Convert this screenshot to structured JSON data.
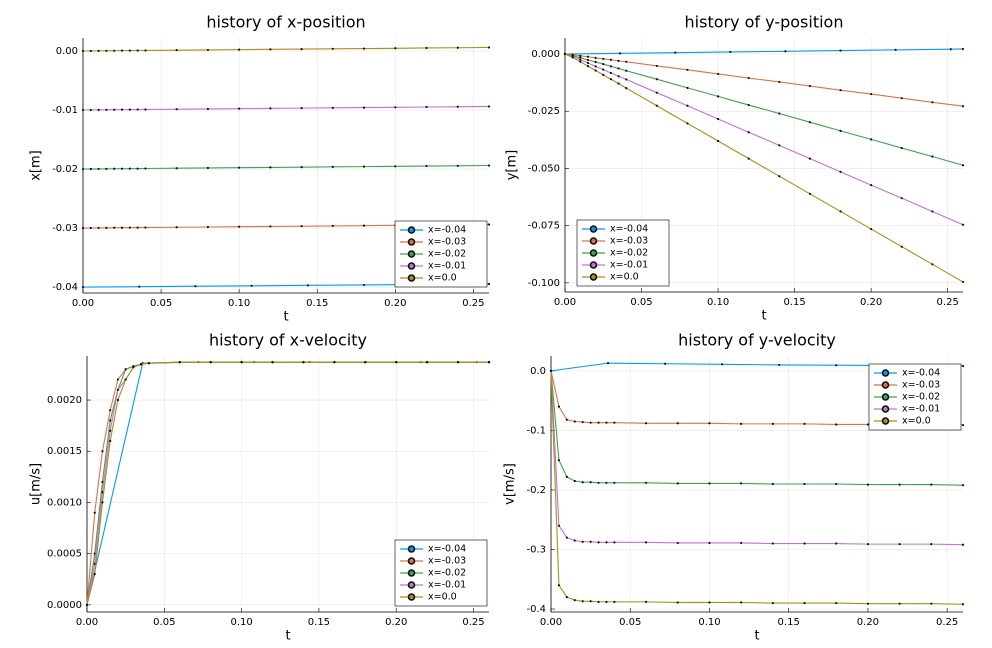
{
  "chart_data": [
    {
      "type": "line",
      "title": "history of x-position",
      "xlabel": "t",
      "ylabel": "x[m]",
      "legend": "lower right",
      "grid": true,
      "xlim": [
        0,
        0.26
      ],
      "xticks": [
        {
          "value": 0,
          "label": "0.00"
        },
        0.05,
        {
          "value": 0.1,
          "label": "0.10"
        },
        0.15,
        {
          "value": 0.2,
          "label": "0.20"
        },
        0.25
      ],
      "ylim": [
        -0.041,
        0.0022
      ],
      "yticks": [
        {
          "value": 0,
          "label": "0.00"
        },
        -0.01,
        -0.02,
        -0.03,
        -0.04
      ],
      "x": [
        0,
        0.005,
        0.01,
        0.015,
        0.02,
        0.025,
        0.03,
        0.035,
        0.04,
        0.06,
        0.08,
        0.1,
        0.12,
        0.14,
        0.16,
        0.18,
        0.2,
        0.22,
        0.24,
        0.26
      ],
      "series": [
        {
          "name": "x=-0.04",
          "color": "#009afa",
          "x": [
            0,
            0.036,
            0.072,
            0.108,
            0.144,
            0.18,
            0.216,
            0.252,
            0.26
          ],
          "values": [
            -0.04,
            -0.03993,
            -0.03985,
            -0.03978,
            -0.0397,
            -0.03963,
            -0.03956,
            -0.03949,
            -0.03948
          ]
        },
        {
          "name": "x=-0.03",
          "color": "#e36f47",
          "values": [
            -0.03,
            -0.02999,
            -0.02998,
            -0.02997,
            -0.02995,
            -0.02994,
            -0.02993,
            -0.02992,
            -0.02991,
            -0.02986,
            -0.02982,
            -0.02977,
            -0.02972,
            -0.02968,
            -0.02963,
            -0.02959,
            -0.02954,
            -0.02949,
            -0.02945,
            -0.0294
          ]
        },
        {
          "name": "x=-0.02",
          "color": "#3ea44e",
          "values": [
            -0.02,
            -0.01999,
            -0.01998,
            -0.01997,
            -0.01995,
            -0.01994,
            -0.01993,
            -0.01992,
            -0.01991,
            -0.01986,
            -0.01982,
            -0.01977,
            -0.01972,
            -0.01968,
            -0.01963,
            -0.01959,
            -0.01954,
            -0.01949,
            -0.01945,
            -0.0194
          ]
        },
        {
          "name": "x=-0.01",
          "color": "#c371d2",
          "values": [
            -0.01,
            -0.00999,
            -0.00998,
            -0.00997,
            -0.00995,
            -0.00994,
            -0.00993,
            -0.00992,
            -0.00991,
            -0.00986,
            -0.00982,
            -0.00977,
            -0.00972,
            -0.00968,
            -0.00963,
            -0.00959,
            -0.00954,
            -0.00949,
            -0.00945,
            -0.0094
          ]
        },
        {
          "name": "x=0.0",
          "color": "#ac8d18",
          "values": [
            0,
            1e-05,
            2e-05,
            3e-05,
            5e-05,
            6e-05,
            7e-05,
            8e-05,
            9e-05,
            0.00014,
            0.00018,
            0.00023,
            0.00028,
            0.00032,
            0.00037,
            0.00041,
            0.00046,
            0.00051,
            0.00055,
            0.0006
          ]
        }
      ]
    },
    {
      "type": "line",
      "title": "history of y-position",
      "xlabel": "t",
      "ylabel": "y[m]",
      "legend": "lower left",
      "grid": true,
      "xlim": [
        0,
        0.26
      ],
      "xticks": [
        {
          "value": 0,
          "label": "0.00"
        },
        0.05,
        {
          "value": 0.1,
          "label": "0.10"
        },
        0.15,
        {
          "value": 0.2,
          "label": "0.20"
        },
        0.25
      ],
      "ylim": [
        -0.104,
        0.007
      ],
      "yticks": [
        {
          "value": 0,
          "label": "0.000"
        },
        -0.025,
        {
          "value": -0.05,
          "label": "-0.050"
        },
        -0.075,
        {
          "value": -0.1,
          "label": "-0.100"
        }
      ],
      "x": [
        0,
        0.005,
        0.01,
        0.015,
        0.02,
        0.025,
        0.03,
        0.035,
        0.04,
        0.06,
        0.08,
        0.1,
        0.12,
        0.14,
        0.16,
        0.18,
        0.2,
        0.22,
        0.24,
        0.26
      ],
      "series": [
        {
          "name": "x=-0.04",
          "color": "#009afa",
          "x": [
            0,
            0.036,
            0.072,
            0.108,
            0.144,
            0.18,
            0.216,
            0.252,
            0.26
          ],
          "values": [
            0,
            0.0003,
            0.0006,
            0.0009,
            0.0012,
            0.0015,
            0.0018,
            0.0021,
            0.0022
          ]
        },
        {
          "name": "x=-0.03",
          "color": "#e36f47",
          "values": [
            0,
            -0.0003,
            -0.0008,
            -0.0012,
            -0.0017,
            -0.0021,
            -0.0025,
            -0.003,
            -0.0034,
            -0.0052,
            -0.0069,
            -0.0087,
            -0.0105,
            -0.0122,
            -0.014,
            -0.0158,
            -0.0175,
            -0.0193,
            -0.0211,
            -0.0228
          ]
        },
        {
          "name": "x=-0.02",
          "color": "#3ea44e",
          "values": [
            0,
            -0.0007,
            -0.0016,
            -0.0026,
            -0.0035,
            -0.0044,
            -0.0054,
            -0.0063,
            -0.0073,
            -0.011,
            -0.0148,
            -0.0185,
            -0.0223,
            -0.026,
            -0.0298,
            -0.0336,
            -0.0373,
            -0.0411,
            -0.0448,
            -0.0486
          ]
        },
        {
          "name": "x=-0.01",
          "color": "#c371d2",
          "values": [
            0,
            -0.0011,
            -0.0025,
            -0.0039,
            -0.0054,
            -0.0068,
            -0.0083,
            -0.0097,
            -0.0111,
            -0.0169,
            -0.0226,
            -0.0284,
            -0.0342,
            -0.0399,
            -0.0457,
            -0.0515,
            -0.0573,
            -0.063,
            -0.0688,
            -0.0746
          ]
        },
        {
          "name": "x=0.0",
          "color": "#ac8d18",
          "values": [
            0,
            -0.0015,
            -0.0034,
            -0.0053,
            -0.0072,
            -0.0091,
            -0.011,
            -0.0129,
            -0.0149,
            -0.0226,
            -0.0303,
            -0.038,
            -0.0457,
            -0.0534,
            -0.0611,
            -0.0688,
            -0.0765,
            -0.0842,
            -0.0919,
            -0.0996
          ]
        }
      ]
    },
    {
      "type": "line",
      "title": "history of x-velocity",
      "xlabel": "t",
      "ylabel": "u[m/s]",
      "legend": "lower right",
      "grid": true,
      "xlim": [
        0,
        0.26
      ],
      "xticks": [
        {
          "value": 0,
          "label": "0.00"
        },
        0.05,
        {
          "value": 0.1,
          "label": "0.10"
        },
        0.15,
        {
          "value": 0.2,
          "label": "0.20"
        },
        0.25
      ],
      "ylim": [
        -7e-05,
        0.00243
      ],
      "yticks": [
        {
          "value": 0,
          "label": "0.0000"
        },
        0.0005,
        {
          "value": 0.001,
          "label": "0.0010"
        },
        0.0015,
        {
          "value": 0.002,
          "label": "0.0020"
        }
      ],
      "x": [
        0,
        0.005,
        0.01,
        0.015,
        0.02,
        0.025,
        0.03,
        0.035,
        0.04,
        0.06,
        0.08,
        0.1,
        0.12,
        0.14,
        0.16,
        0.18,
        0.2,
        0.22,
        0.24,
        0.26
      ],
      "series": [
        {
          "name": "x=-0.04",
          "color": "#009afa",
          "x": [
            0,
            0.036,
            0.072,
            0.108,
            0.144,
            0.18,
            0.216,
            0.252,
            0.26
          ],
          "values": [
            0,
            0.00236,
            0.00237,
            0.00237,
            0.00237,
            0.00237,
            0.00237,
            0.00237,
            0.00237
          ]
        },
        {
          "name": "x=-0.03",
          "color": "#e36f47",
          "values": [
            0,
            0.0009,
            0.0015,
            0.0019,
            0.0022,
            0.0023,
            0.00233,
            0.00235,
            0.00236,
            0.00237,
            0.00237,
            0.00237,
            0.00237,
            0.00237,
            0.00237,
            0.00237,
            0.00237,
            0.00237,
            0.00237,
            0.00237
          ]
        },
        {
          "name": "x=-0.02",
          "color": "#3ea44e",
          "values": [
            0,
            0.0005,
            0.0012,
            0.0018,
            0.0021,
            0.0023,
            0.00233,
            0.00235,
            0.00236,
            0.00237,
            0.00237,
            0.00237,
            0.00237,
            0.00237,
            0.00237,
            0.00237,
            0.00237,
            0.00237,
            0.00237,
            0.00237
          ]
        },
        {
          "name": "x=-0.01",
          "color": "#c371d2",
          "values": [
            0,
            0.0004,
            0.0011,
            0.0017,
            0.0021,
            0.0022,
            0.00232,
            0.00235,
            0.00236,
            0.00237,
            0.00237,
            0.00237,
            0.00237,
            0.00237,
            0.00237,
            0.00237,
            0.00237,
            0.00237,
            0.00237,
            0.00237
          ]
        },
        {
          "name": "x=0.0",
          "color": "#ac8d18",
          "values": [
            0,
            0.0003,
            0.001,
            0.0016,
            0.002,
            0.0022,
            0.00232,
            0.00235,
            0.00236,
            0.00237,
            0.00237,
            0.00237,
            0.00237,
            0.00237,
            0.00237,
            0.00237,
            0.00237,
            0.00237,
            0.00237,
            0.00237
          ]
        }
      ]
    },
    {
      "type": "line",
      "title": "history of y-velocity",
      "xlabel": "t",
      "ylabel": "v[m/s]",
      "legend": "upper right",
      "grid": true,
      "xlim": [
        0,
        0.26
      ],
      "xticks": [
        {
          "value": 0,
          "label": "0.00"
        },
        0.05,
        {
          "value": 0.1,
          "label": "0.10"
        },
        0.15,
        {
          "value": 0.2,
          "label": "0.20"
        },
        0.25
      ],
      "ylim": [
        -0.405,
        0.025
      ],
      "yticks": [
        {
          "value": 0,
          "label": "0.0"
        },
        -0.1,
        -0.2,
        -0.3,
        -0.4
      ],
      "x": [
        0,
        0.005,
        0.01,
        0.015,
        0.02,
        0.025,
        0.03,
        0.035,
        0.04,
        0.06,
        0.08,
        0.1,
        0.12,
        0.14,
        0.16,
        0.18,
        0.2,
        0.22,
        0.24,
        0.26
      ],
      "series": [
        {
          "name": "x=-0.04",
          "color": "#009afa",
          "x": [
            0,
            0.036,
            0.072,
            0.108,
            0.144,
            0.18,
            0.216,
            0.252,
            0.26
          ],
          "values": [
            0,
            0.013,
            0.012,
            0.011,
            0.01,
            0.0095,
            0.009,
            0.0085,
            0.0083
          ]
        },
        {
          "name": "x=-0.03",
          "color": "#e36f47",
          "values": [
            0,
            -0.06,
            -0.082,
            -0.085,
            -0.086,
            -0.087,
            -0.087,
            -0.087,
            -0.087,
            -0.088,
            -0.088,
            -0.088,
            -0.089,
            -0.089,
            -0.089,
            -0.09,
            -0.09,
            -0.09,
            -0.091,
            -0.091
          ]
        },
        {
          "name": "x=-0.02",
          "color": "#3ea44e",
          "values": [
            0,
            -0.15,
            -0.178,
            -0.185,
            -0.187,
            -0.187,
            -0.188,
            -0.188,
            -0.188,
            -0.188,
            -0.189,
            -0.189,
            -0.189,
            -0.19,
            -0.19,
            -0.19,
            -0.191,
            -0.191,
            -0.191,
            -0.192
          ]
        },
        {
          "name": "x=-0.01",
          "color": "#c371d2",
          "values": [
            0,
            -0.26,
            -0.28,
            -0.285,
            -0.287,
            -0.287,
            -0.288,
            -0.288,
            -0.288,
            -0.288,
            -0.289,
            -0.289,
            -0.289,
            -0.29,
            -0.29,
            -0.29,
            -0.291,
            -0.291,
            -0.291,
            -0.292
          ]
        },
        {
          "name": "x=0.0",
          "color": "#ac8d18",
          "values": [
            0,
            -0.36,
            -0.38,
            -0.385,
            -0.387,
            -0.387,
            -0.388,
            -0.388,
            -0.388,
            -0.388,
            -0.389,
            -0.389,
            -0.389,
            -0.39,
            -0.39,
            -0.39,
            -0.391,
            -0.391,
            -0.391,
            -0.392
          ]
        }
      ]
    }
  ]
}
